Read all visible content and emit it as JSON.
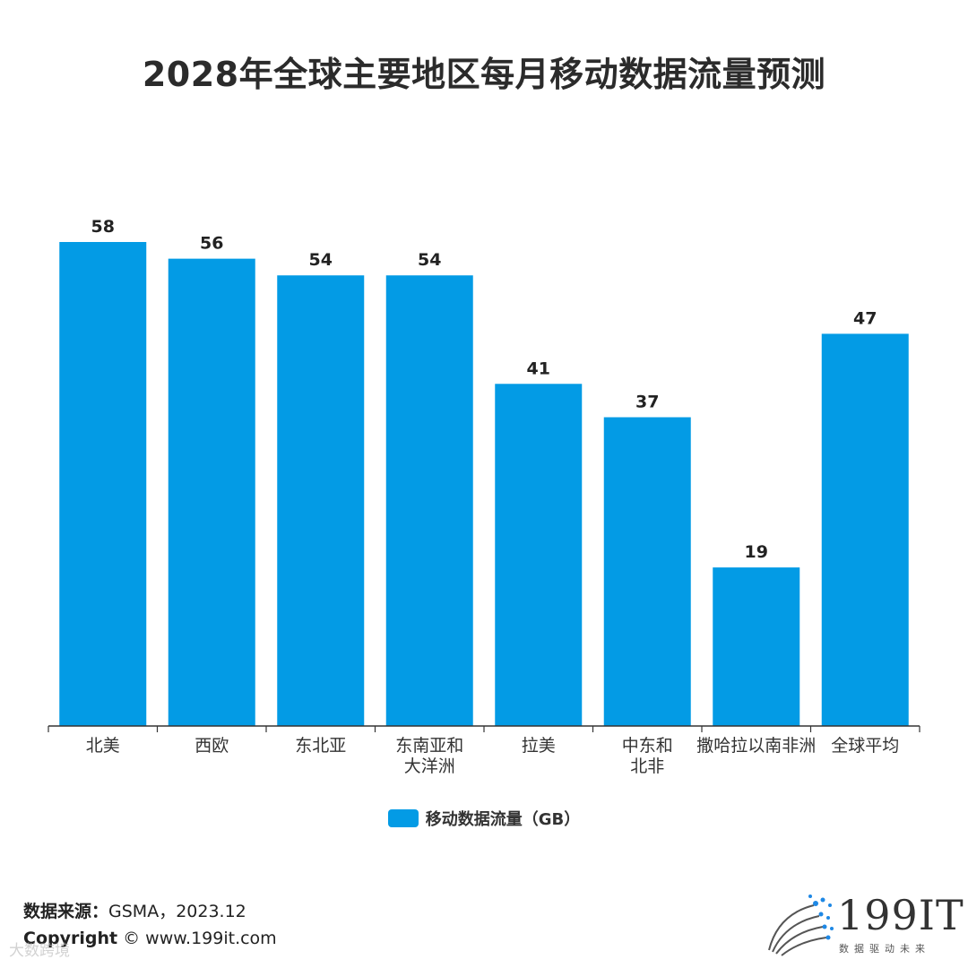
{
  "colors": {
    "bar": "#039be5",
    "axis": "#333333",
    "label": "#222222"
  },
  "title": "2028年全球主要地区每月移动数据流量预测",
  "legend": {
    "label": "移动数据流量（GB）"
  },
  "footer": {
    "source_label": "数据来源：",
    "source_value": "GSMA，2023.12",
    "copyright_label": "Copyright",
    "copyright_value": "©  www.199it.com",
    "watermark": "大数跨境"
  },
  "logo": {
    "text": "199IT",
    "subtitle": "数据驱动未来"
  },
  "chart_data": {
    "type": "bar",
    "title": "2028年全球主要地区每月移动数据流量预测",
    "categories": [
      "北美",
      "西欧",
      "东北亚",
      "东南亚和大洋洲",
      "拉美",
      "中东和北非",
      "撒哈拉以南非洲",
      "全球平均"
    ],
    "category_lines": [
      [
        "北美"
      ],
      [
        "西欧"
      ],
      [
        "东北亚"
      ],
      [
        "东南亚和",
        "大洋洲"
      ],
      [
        "拉美"
      ],
      [
        "中东和",
        "北非"
      ],
      [
        "撒哈拉以南非洲"
      ],
      [
        "全球平均"
      ]
    ],
    "series": [
      {
        "name": "移动数据流量（GB）",
        "values": [
          58,
          56,
          54,
          54,
          41,
          37,
          19,
          47
        ]
      }
    ],
    "ylim": [
      0,
      58
    ],
    "grid": false,
    "legend_position": "bottom"
  }
}
